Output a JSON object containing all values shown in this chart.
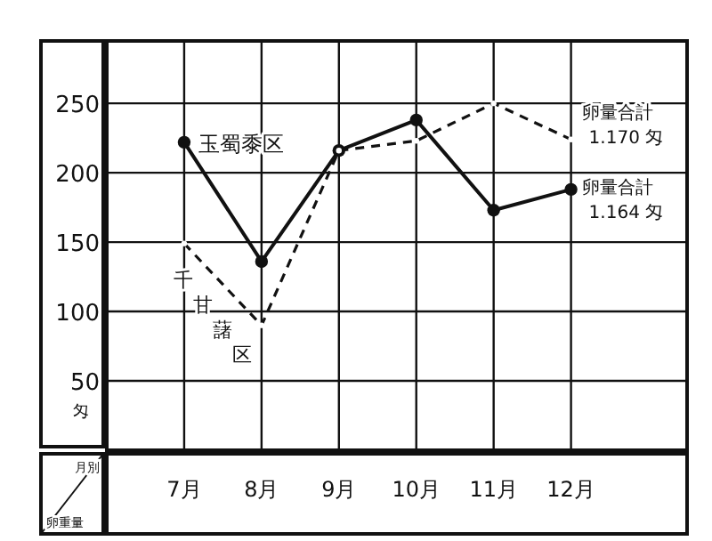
{
  "chart_data": {
    "type": "line",
    "xlabel": "月別",
    "ylabel": "卵重量",
    "categories": [
      "7月",
      "8月",
      "9月",
      "10月",
      "11月",
      "12月"
    ],
    "series": [
      {
        "name": "玉蜀黍区",
        "color": "#111111",
        "line_style": "solid",
        "values": [
          222,
          136,
          216,
          238,
          173,
          188
        ]
      },
      {
        "name": "千甘藷区",
        "color": "#111111",
        "line_style": "dashed",
        "values": [
          149,
          90,
          216,
          223,
          250,
          224
        ]
      }
    ],
    "ylim": [
      0,
      295
    ],
    "yticks": [
      50,
      100,
      150,
      200,
      250
    ],
    "grid": true,
    "legend": false,
    "marker": "circle",
    "annotations": [
      "匁",
      {
        "text": "卵量合計 1.170 匁",
        "x": "12月",
        "y": 224
      },
      {
        "text": "卵量合計 1.164 匁",
        "x": "12月",
        "y": 188
      }
    ]
  }
}
